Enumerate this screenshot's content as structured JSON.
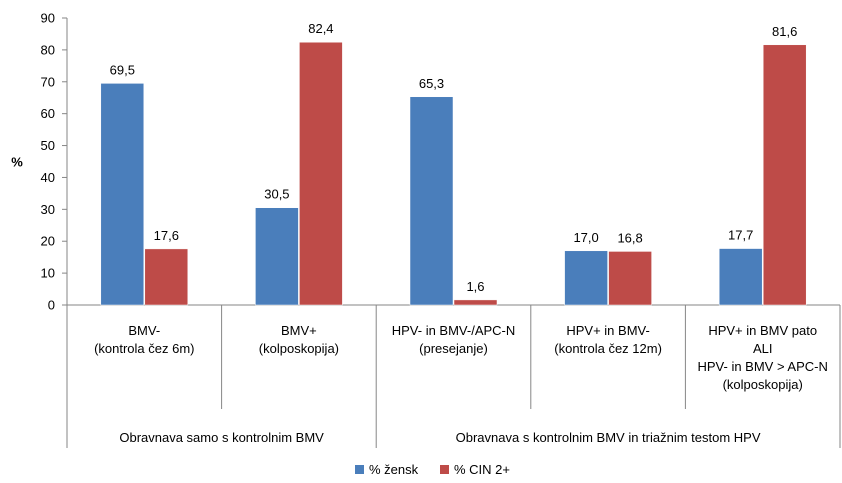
{
  "chart_data": {
    "type": "bar",
    "ylabel": "%",
    "ylim": [
      0,
      90
    ],
    "yticks": [
      0,
      10,
      20,
      30,
      40,
      50,
      60,
      70,
      80,
      90
    ],
    "grid": false,
    "legend_position": "bottom",
    "categories": [
      [
        "BMV-",
        "(kontrola čez 6m)"
      ],
      [
        "BMV+",
        "(kolposkopija)"
      ],
      [
        "HPV- in BMV-/APC-N",
        "(presejanje)"
      ],
      [
        "HPV+ in BMV-",
        "(kontrola čez 12m)"
      ],
      [
        "HPV+ in BMV pato",
        "ALI",
        "HPV- in BMV > APC-N",
        "(kolposkopija)"
      ]
    ],
    "groups": [
      {
        "label": "Obravnava samo s kontrolnim BMV",
        "span": [
          0,
          1
        ]
      },
      {
        "label": "Obravnava s kontrolnim BMV in triažnim testom HPV",
        "span": [
          2,
          4
        ]
      }
    ],
    "series": [
      {
        "name": "% žensk",
        "color": "#4a7ebb",
        "values": [
          69.5,
          30.5,
          65.3,
          17.0,
          17.7
        ],
        "labels": [
          "69,5",
          "30,5",
          "65,3",
          "17,0",
          "17,7"
        ]
      },
      {
        "name": "% CIN 2+",
        "color": "#be4b48",
        "values": [
          17.6,
          82.4,
          1.6,
          16.8,
          81.6
        ],
        "labels": [
          "17,6",
          "82,4",
          "1,6",
          "16,8",
          "81,6"
        ]
      }
    ]
  }
}
